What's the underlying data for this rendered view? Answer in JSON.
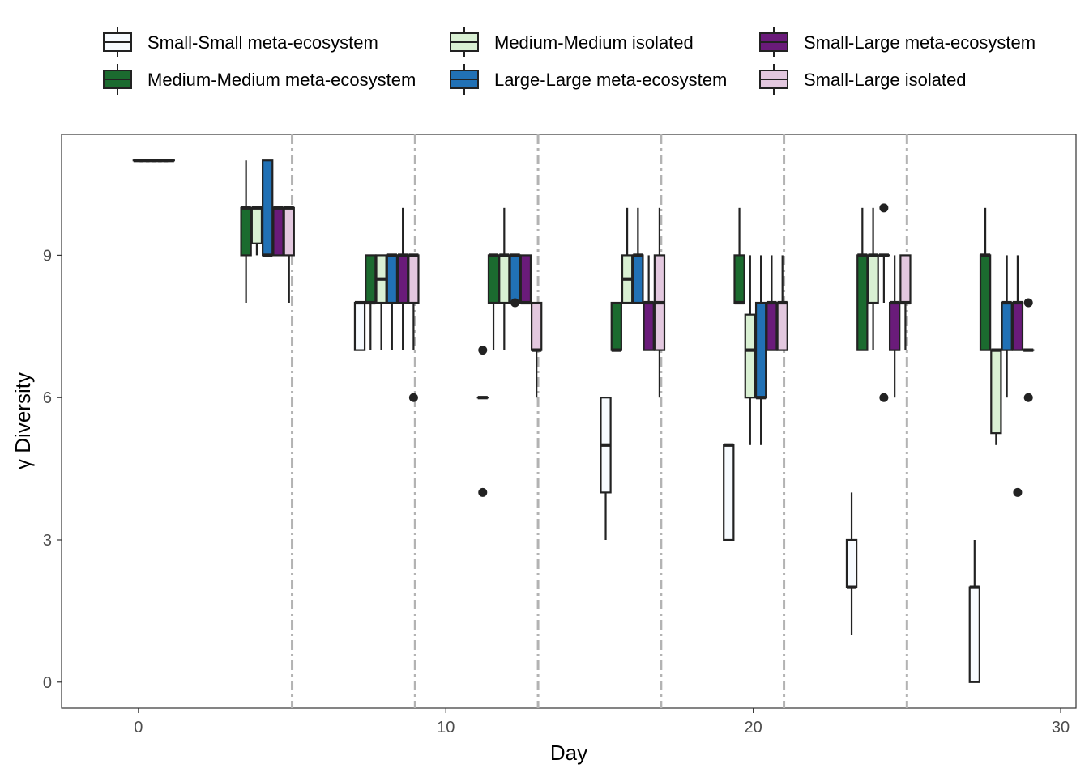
{
  "chart_data": {
    "type": "boxplot",
    "xlabel": "Day",
    "ylabel": "γ Diversity",
    "xlim": [
      -2.5,
      30.5
    ],
    "ylim": [
      -0.55,
      11.55
    ],
    "x_ticks": [
      0,
      10,
      20,
      30
    ],
    "y_ticks": [
      0,
      3,
      6,
      9
    ],
    "grid": false,
    "legend_position": "top",
    "legend_columns": 3,
    "vlines": [
      5,
      9,
      13,
      17,
      21,
      25
    ],
    "vline_color": "#b3b3b3",
    "box_width": 0.32,
    "series": [
      {
        "name": "Small-Small meta-ecosystem",
        "color": "#f7fbff",
        "boxes": [
          {
            "day": 0,
            "min": 11,
            "q1": 11,
            "median": 11,
            "q3": 11,
            "max": 11,
            "outliers": []
          },
          {
            "day": 7.2,
            "min": 7,
            "q1": 7,
            "median": 8,
            "q3": 8,
            "max": 8,
            "outliers": []
          },
          {
            "day": 11.2,
            "min": 6,
            "q1": 6,
            "median": 6,
            "q3": 6,
            "max": 6,
            "outliers": [
              4,
              7
            ]
          },
          {
            "day": 15.2,
            "min": 3,
            "q1": 4,
            "median": 5,
            "q3": 6,
            "max": 6,
            "outliers": []
          },
          {
            "day": 19.2,
            "min": 3,
            "q1": 3,
            "median": 5,
            "q3": 5,
            "max": 5,
            "outliers": []
          },
          {
            "day": 23.2,
            "min": 1,
            "q1": 2,
            "median": 2,
            "q3": 3,
            "max": 4,
            "outliers": []
          },
          {
            "day": 27.2,
            "min": 0,
            "q1": 0,
            "median": 2,
            "q3": 2,
            "max": 3,
            "outliers": []
          }
        ]
      },
      {
        "name": "Medium-Medium meta-ecosystem",
        "color": "#1b6b2f",
        "boxes": [
          {
            "day": 0.2,
            "min": 11,
            "q1": 11,
            "median": 11,
            "q3": 11,
            "max": 11,
            "outliers": []
          },
          {
            "day": 3.5,
            "min": 8,
            "q1": 9,
            "median": 10,
            "q3": 10,
            "max": 11,
            "outliers": []
          },
          {
            "day": 7.55,
            "min": 7,
            "q1": 8,
            "median": 8,
            "q3": 9,
            "max": 9,
            "outliers": []
          },
          {
            "day": 11.55,
            "min": 7,
            "q1": 8,
            "median": 9,
            "q3": 9,
            "max": 9,
            "outliers": []
          },
          {
            "day": 15.55,
            "min": 7,
            "q1": 7,
            "median": 7,
            "q3": 8,
            "max": 8,
            "outliers": []
          },
          {
            "day": 19.55,
            "min": 8,
            "q1": 8,
            "median": 8,
            "q3": 9,
            "max": 10,
            "outliers": []
          },
          {
            "day": 23.55,
            "min": 7,
            "q1": 7,
            "median": 9,
            "q3": 9,
            "max": 10,
            "outliers": []
          },
          {
            "day": 27.55,
            "min": 7,
            "q1": 7,
            "median": 9,
            "q3": 9,
            "max": 10,
            "outliers": []
          }
        ]
      },
      {
        "name": "Medium-Medium isolated",
        "color": "#d9f0d3",
        "boxes": [
          {
            "day": 0.4,
            "min": 11,
            "q1": 11,
            "median": 11,
            "q3": 11,
            "max": 11,
            "outliers": []
          },
          {
            "day": 3.85,
            "min": 9,
            "q1": 9.25,
            "median": 10,
            "q3": 10,
            "max": 10,
            "outliers": []
          },
          {
            "day": 7.9,
            "min": 7,
            "q1": 8,
            "median": 8.5,
            "q3": 9,
            "max": 9,
            "outliers": []
          },
          {
            "day": 11.9,
            "min": 7,
            "q1": 8,
            "median": 9,
            "q3": 9,
            "max": 10,
            "outliers": []
          },
          {
            "day": 15.9,
            "min": 8,
            "q1": 8,
            "median": 8.5,
            "q3": 9,
            "max": 10,
            "outliers": []
          },
          {
            "day": 19.9,
            "min": 5,
            "q1": 6,
            "median": 7,
            "q3": 7.75,
            "max": 9,
            "outliers": []
          },
          {
            "day": 23.9,
            "min": 7,
            "q1": 8,
            "median": 9,
            "q3": 9,
            "max": 10,
            "outliers": []
          },
          {
            "day": 27.9,
            "min": 5,
            "q1": 5.25,
            "median": 7,
            "q3": 7,
            "max": 7,
            "outliers": []
          }
        ]
      },
      {
        "name": "Large-Large meta-ecosystem",
        "color": "#2171b5",
        "boxes": [
          {
            "day": 0.6,
            "min": 11,
            "q1": 11,
            "median": 11,
            "q3": 11,
            "max": 11,
            "outliers": []
          },
          {
            "day": 4.2,
            "min": 9,
            "q1": 9,
            "median": 9,
            "q3": 11,
            "max": 11,
            "outliers": []
          },
          {
            "day": 8.25,
            "min": 7,
            "q1": 8,
            "median": 9,
            "q3": 9,
            "max": 9,
            "outliers": []
          },
          {
            "day": 12.25,
            "min": 8,
            "q1": 8,
            "median": 9,
            "q3": 9,
            "max": 9,
            "outliers": [
              8
            ]
          },
          {
            "day": 16.25,
            "min": 8,
            "q1": 8,
            "median": 9,
            "q3": 9,
            "max": 10,
            "outliers": []
          },
          {
            "day": 20.25,
            "min": 5,
            "q1": 6,
            "median": 6,
            "q3": 8,
            "max": 9,
            "outliers": []
          },
          {
            "day": 24.25,
            "min": 8,
            "q1": 9,
            "median": 9,
            "q3": 9,
            "max": 9,
            "outliers": [
              6,
              10
            ]
          },
          {
            "day": 28.25,
            "min": 6,
            "q1": 7,
            "median": 8,
            "q3": 8,
            "max": 9,
            "outliers": []
          }
        ]
      },
      {
        "name": "Small-Large meta-ecosystem",
        "color": "#6a1b7a",
        "boxes": [
          {
            "day": 0.8,
            "min": 11,
            "q1": 11,
            "median": 11,
            "q3": 11,
            "max": 11,
            "outliers": []
          },
          {
            "day": 4.55,
            "min": 9,
            "q1": 9,
            "median": 10,
            "q3": 10,
            "max": 10,
            "outliers": []
          },
          {
            "day": 8.6,
            "min": 7,
            "q1": 8,
            "median": 9,
            "q3": 9,
            "max": 10,
            "outliers": []
          },
          {
            "day": 12.6,
            "min": 8,
            "q1": 8,
            "median": 8,
            "q3": 9,
            "max": 9,
            "outliers": []
          },
          {
            "day": 16.6,
            "min": 7,
            "q1": 7,
            "median": 8,
            "q3": 8,
            "max": 9,
            "outliers": []
          },
          {
            "day": 20.6,
            "min": 7,
            "q1": 7,
            "median": 8,
            "q3": 8,
            "max": 9,
            "outliers": []
          },
          {
            "day": 24.6,
            "min": 6,
            "q1": 7,
            "median": 8,
            "q3": 8,
            "max": 9,
            "outliers": []
          },
          {
            "day": 28.6,
            "min": 7,
            "q1": 7,
            "median": 8,
            "q3": 8,
            "max": 9,
            "outliers": [
              4
            ]
          }
        ]
      },
      {
        "name": "Small-Large isolated",
        "color": "#e3c8df",
        "boxes": [
          {
            "day": 1.0,
            "min": 11,
            "q1": 11,
            "median": 11,
            "q3": 11,
            "max": 11,
            "outliers": []
          },
          {
            "day": 4.9,
            "min": 8,
            "q1": 9,
            "median": 10,
            "q3": 10,
            "max": 10,
            "outliers": []
          },
          {
            "day": 8.95,
            "min": 7,
            "q1": 8,
            "median": 9,
            "q3": 9,
            "max": 9,
            "outliers": [
              6
            ]
          },
          {
            "day": 12.95,
            "min": 6,
            "q1": 7,
            "median": 7,
            "q3": 8,
            "max": 8,
            "outliers": []
          },
          {
            "day": 16.95,
            "min": 6,
            "q1": 7,
            "median": 8,
            "q3": 9,
            "max": 10,
            "outliers": []
          },
          {
            "day": 20.95,
            "min": 7,
            "q1": 7,
            "median": 8,
            "q3": 8,
            "max": 9,
            "outliers": []
          },
          {
            "day": 24.95,
            "min": 7,
            "q1": 8,
            "median": 8,
            "q3": 9,
            "max": 9,
            "outliers": []
          },
          {
            "day": 28.95,
            "min": 7,
            "q1": 7,
            "median": 7,
            "q3": 7,
            "max": 7,
            "outliers": [
              6,
              8
            ]
          }
        ]
      }
    ]
  }
}
